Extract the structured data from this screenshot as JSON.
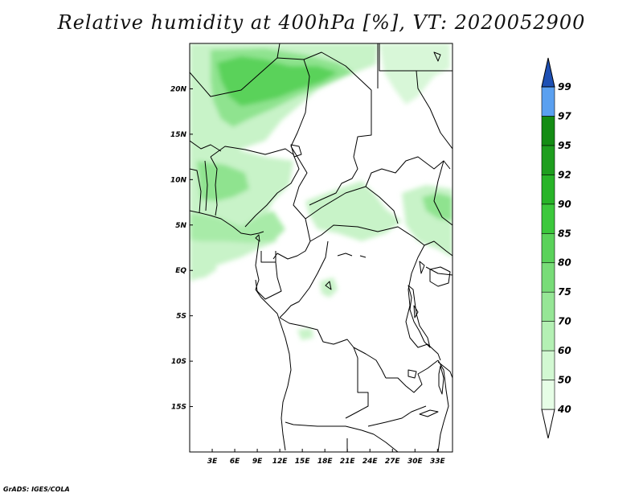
{
  "title": "Relative humidity at 400hPa [%], VT: 2020052900",
  "footer": "GrADS: IGES/COLA",
  "map": {
    "lon_range": [
      0,
      35
    ],
    "lat_range": [
      -20,
      25
    ],
    "lon_ticks": [
      "3E",
      "6E",
      "9E",
      "12E",
      "15E",
      "18E",
      "21E",
      "24E",
      "27E",
      "30E",
      "33E"
    ],
    "lat_ticks": [
      "20N",
      "15N",
      "10N",
      "5N",
      "EQ",
      "5S",
      "10S",
      "15S"
    ]
  },
  "colorbar": {
    "levels": [
      "40",
      "50",
      "60",
      "70",
      "75",
      "80",
      "85",
      "90",
      "92",
      "95",
      "97",
      "99"
    ],
    "colors": [
      "#e6fde6",
      "#d2f8d2",
      "#b4f0b4",
      "#96e696",
      "#78dc78",
      "#5ad25a",
      "#3cc83c",
      "#28b428",
      "#1e9e1e",
      "#148c14",
      "#5aa0f0",
      "#2b73dc",
      "#1e50b4"
    ]
  }
}
